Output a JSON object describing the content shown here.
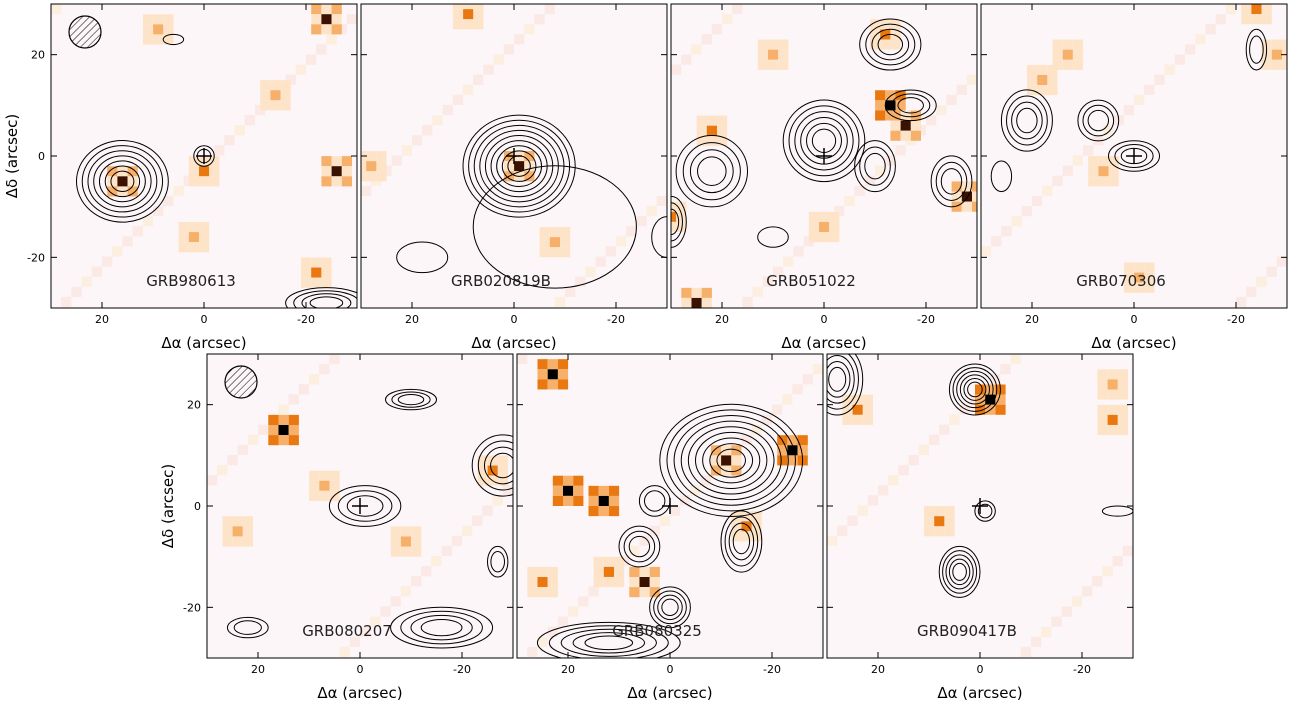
{
  "chart_data": [
    {
      "type": "image",
      "title": "GRB980613",
      "xlabel": "Δα (arcsec)",
      "ylabel": "Δδ (arcsec)",
      "xlim": [
        30,
        -30
      ],
      "ylim": [
        -30,
        30
      ],
      "xticks": [
        20,
        0,
        -20
      ],
      "yticks": [
        -20,
        0,
        20
      ],
      "ytick_labels": true,
      "beam": true
    },
    {
      "type": "image",
      "title": "GRB020819B",
      "xlabel": "Δα (arcsec)",
      "xlim": [
        30,
        -30
      ],
      "ylim": [
        -30,
        30
      ],
      "xticks": [
        20,
        0,
        -20
      ],
      "yticks": [
        -20,
        0,
        20
      ],
      "ytick_labels": false,
      "beam": false
    },
    {
      "type": "image",
      "title": "GRB051022",
      "xlabel": "Δα (arcsec)",
      "xlim": [
        30,
        -30
      ],
      "ylim": [
        -30,
        30
      ],
      "xticks": [
        20,
        0,
        -20
      ],
      "yticks": [
        -20,
        0,
        20
      ],
      "ytick_labels": false,
      "beam": false
    },
    {
      "type": "image",
      "title": "GRB070306",
      "xlabel": "Δα (arcsec)",
      "xlim": [
        30,
        -30
      ],
      "ylim": [
        -30,
        30
      ],
      "xticks": [
        20,
        0,
        -20
      ],
      "yticks": [
        -20,
        0,
        20
      ],
      "ytick_labels": false,
      "beam": false
    },
    {
      "type": "image",
      "title": "GRB080207",
      "xlabel": "Δα (arcsec)",
      "ylabel": "Δδ (arcsec)",
      "xlim": [
        30,
        -30
      ],
      "ylim": [
        -30,
        30
      ],
      "xticks": [
        20,
        0,
        -20
      ],
      "yticks": [
        -20,
        0,
        20
      ],
      "ytick_labels": true,
      "beam": true
    },
    {
      "type": "image",
      "title": "GRB080325",
      "xlabel": "Δα (arcsec)",
      "xlim": [
        30,
        -30
      ],
      "ylim": [
        -30,
        30
      ],
      "xticks": [
        20,
        0,
        -20
      ],
      "yticks": [
        -20,
        0,
        20
      ],
      "ytick_labels": false,
      "beam": false
    },
    {
      "type": "image",
      "title": "GRB090417B",
      "xlabel": "Δα (arcsec)",
      "xlim": [
        30,
        -30
      ],
      "ylim": [
        -30,
        30
      ],
      "xticks": [
        20,
        0,
        -20
      ],
      "yticks": [
        -20,
        0,
        20
      ],
      "ytick_labels": false,
      "beam": false
    }
  ]
}
